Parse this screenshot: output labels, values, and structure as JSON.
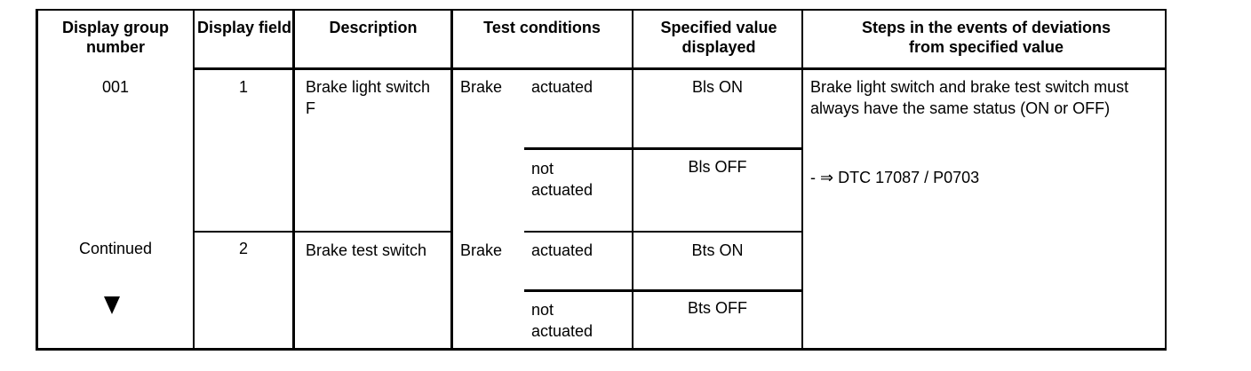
{
  "headers": {
    "group": "Display group number",
    "field": "Display field",
    "description": "Description",
    "conditions": "Test conditions",
    "specified": "Specified value displayed",
    "steps": "Steps in the events of deviations from specified value"
  },
  "rows": [
    {
      "group": "001",
      "field": "1",
      "description": "Brake light switch F",
      "condition_label": "Brake",
      "states": [
        {
          "condition": "actuated",
          "value": "Bls ON"
        },
        {
          "condition": "not actuated",
          "value": "Bls OFF"
        }
      ]
    },
    {
      "group": "Continued",
      "group_icon": "triangle-down-icon",
      "field": "2",
      "description": "Brake test switch",
      "condition_label": "Brake",
      "states": [
        {
          "condition": "actuated",
          "value": "Bts ON"
        },
        {
          "condition": "not actuated",
          "value": "Bts OFF"
        }
      ]
    }
  ],
  "steps": {
    "note": "Brake light switch and brake test switch must always have the same status (ON or OFF)",
    "reference": "- ⇒ DTC 17087 / P0703"
  }
}
